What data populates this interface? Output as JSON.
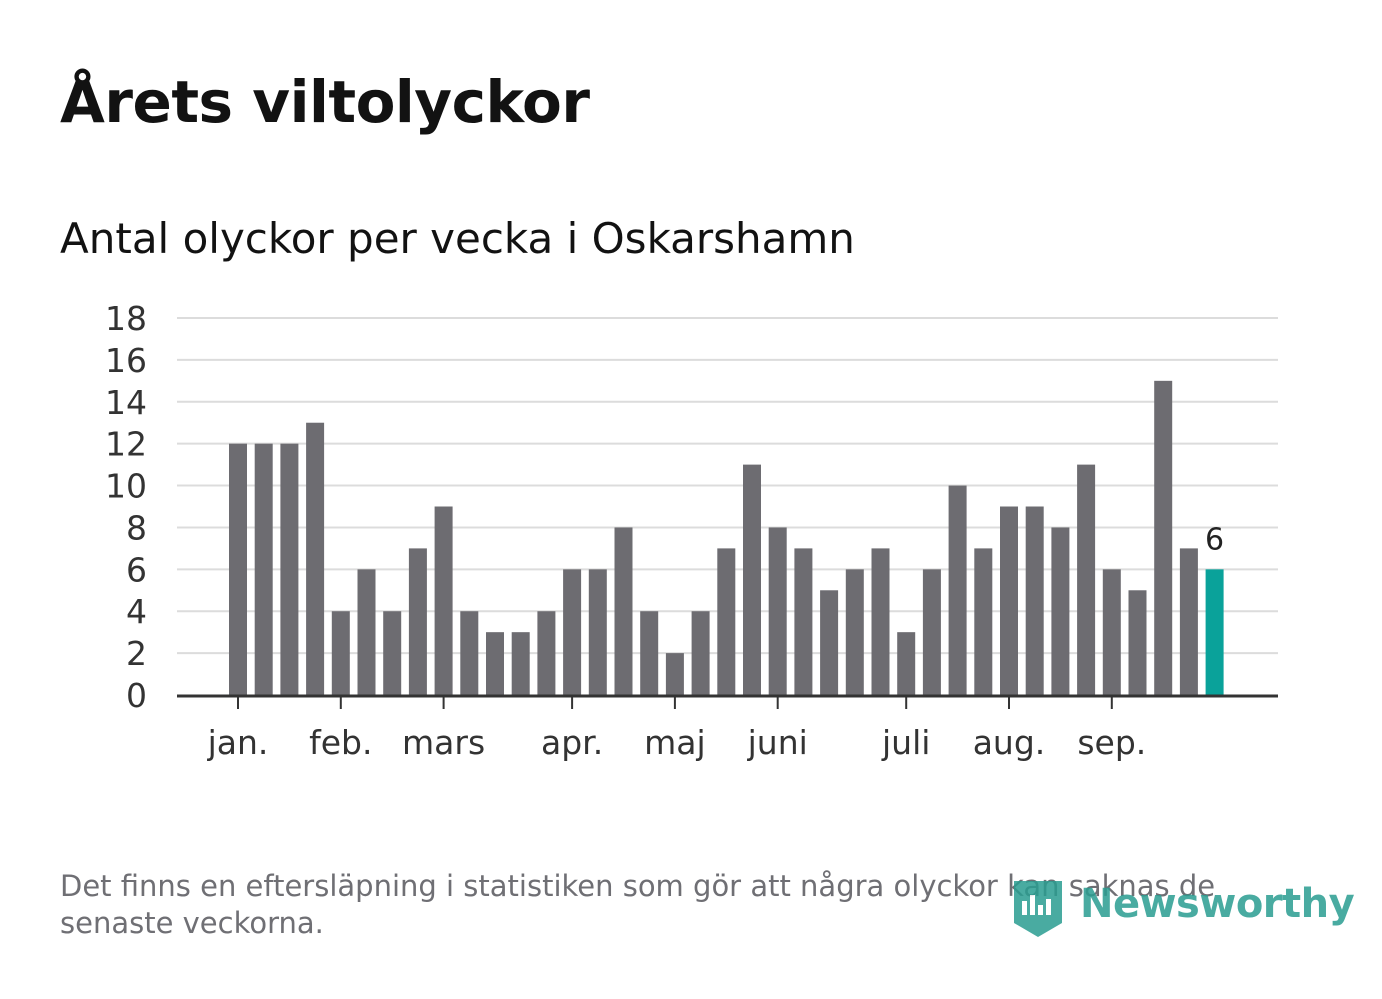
{
  "title": "Årets viltolyckor",
  "subtitle": "Antal olyckor per vecka i Oskarshamn",
  "footnote": "Det finns en eftersläpning i statistiken som gör att några olyckor kan saknas de senaste veckorna.",
  "brand": "Newsworthy",
  "colors": {
    "bar": "#6d6c71",
    "highlight": "#0aa29a",
    "grid": "#dcdcdc",
    "axis": "#333333",
    "text": "#333333",
    "brand": "#2a9d91"
  },
  "chart_data": {
    "type": "bar",
    "title": "Antal olyckor per vecka i Oskarshamn",
    "xlabel": "",
    "ylabel": "",
    "ylim": [
      0,
      18
    ],
    "yticks": [
      0,
      2,
      4,
      6,
      8,
      10,
      12,
      14,
      16,
      18
    ],
    "grid": true,
    "values": [
      12,
      12,
      12,
      13,
      4,
      6,
      4,
      7,
      9,
      4,
      3,
      3,
      4,
      6,
      6,
      8,
      4,
      2,
      4,
      7,
      11,
      8,
      7,
      5,
      6,
      7,
      3,
      6,
      10,
      7,
      9,
      9,
      8,
      11,
      6,
      5,
      15,
      7,
      6
    ],
    "month_labels": [
      {
        "label": "jan.",
        "week": 0
      },
      {
        "label": "feb.",
        "week": 4
      },
      {
        "label": "mars",
        "week": 8
      },
      {
        "label": "apr.",
        "week": 13
      },
      {
        "label": "maj",
        "week": 17
      },
      {
        "label": "juni",
        "week": 21
      },
      {
        "label": "juli",
        "week": 26
      },
      {
        "label": "aug.",
        "week": 30
      },
      {
        "label": "sep.",
        "week": 34
      }
    ],
    "highlight_index": 38,
    "highlight_label": "6"
  }
}
